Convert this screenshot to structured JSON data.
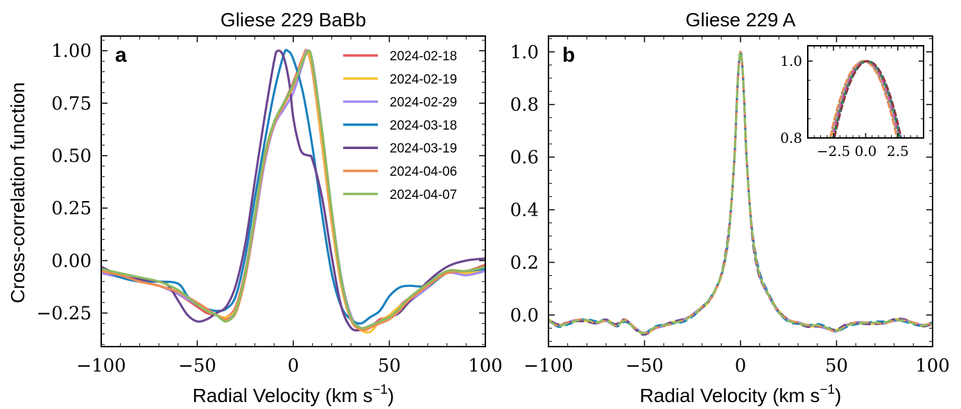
{
  "chart_data": [
    {
      "type": "line",
      "panel_label": "a",
      "title": "Gliese 229 BaBb",
      "xlabel": "Radial Velocity (km s",
      "xlabel_sup": "−1",
      "xlabel_close": ")",
      "ylabel": "Cross-correlation function",
      "xlim": [
        -100,
        100
      ],
      "ylim": [
        -0.41,
        1.07
      ],
      "xticks": [
        -100,
        -50,
        0,
        50,
        100
      ],
      "xtick_labels": [
        "−100",
        "−50",
        "0",
        "50",
        "100"
      ],
      "yticks": [
        -0.25,
        0.0,
        0.25,
        0.5,
        0.75,
        1.0
      ],
      "ytick_labels": [
        "−0.25",
        "0.00",
        "0.25",
        "0.50",
        "0.75",
        "1.00"
      ],
      "legend_position": "top-right",
      "series": [
        {
          "name": "2024-02-18",
          "color": "#e8575e",
          "x": [
            -100,
            -90,
            -80,
            -70,
            -60,
            -50,
            -45,
            -40,
            -35,
            -30,
            -25,
            -20,
            -15,
            -10,
            -5,
            0,
            5,
            7,
            10,
            15,
            20,
            25,
            30,
            35,
            40,
            45,
            50,
            55,
            60,
            70,
            80,
            90,
            100
          ],
          "y": [
            -0.04,
            -0.07,
            -0.1,
            -0.12,
            -0.16,
            -0.22,
            -0.25,
            -0.26,
            -0.27,
            -0.22,
            -0.05,
            0.22,
            0.5,
            0.66,
            0.75,
            0.85,
            0.97,
            1.0,
            0.9,
            0.55,
            0.18,
            -0.12,
            -0.28,
            -0.33,
            -0.32,
            -0.28,
            -0.27,
            -0.22,
            -0.18,
            -0.12,
            -0.05,
            -0.05,
            -0.02
          ]
        },
        {
          "name": "2024-02-19",
          "color": "#f8c236",
          "x": [
            -100,
            -90,
            -80,
            -70,
            -60,
            -50,
            -45,
            -40,
            -35,
            -30,
            -25,
            -20,
            -15,
            -10,
            -5,
            0,
            5,
            7,
            10,
            15,
            20,
            25,
            30,
            35,
            40,
            45,
            50,
            55,
            60,
            70,
            80,
            90,
            100
          ],
          "y": [
            -0.05,
            -0.08,
            -0.1,
            -0.12,
            -0.16,
            -0.21,
            -0.24,
            -0.26,
            -0.27,
            -0.23,
            -0.06,
            0.22,
            0.5,
            0.66,
            0.74,
            0.84,
            0.96,
            1.0,
            0.91,
            0.56,
            0.19,
            -0.12,
            -0.28,
            -0.33,
            -0.34,
            -0.29,
            -0.26,
            -0.22,
            -0.19,
            -0.12,
            -0.05,
            -0.06,
            -0.04
          ]
        },
        {
          "name": "2024-02-29",
          "color": "#a38cee",
          "x": [
            -100,
            -90,
            -80,
            -70,
            -60,
            -50,
            -45,
            -40,
            -35,
            -30,
            -25,
            -20,
            -15,
            -10,
            -5,
            0,
            5,
            7,
            10,
            15,
            20,
            25,
            30,
            35,
            40,
            45,
            50,
            55,
            60,
            70,
            80,
            90,
            100
          ],
          "y": [
            -0.06,
            -0.08,
            -0.1,
            -0.12,
            -0.16,
            -0.21,
            -0.24,
            -0.26,
            -0.28,
            -0.24,
            -0.08,
            0.18,
            0.46,
            0.64,
            0.72,
            0.8,
            0.94,
            1.0,
            0.95,
            0.62,
            0.24,
            -0.08,
            -0.26,
            -0.32,
            -0.31,
            -0.29,
            -0.28,
            -0.24,
            -0.2,
            -0.13,
            -0.06,
            -0.07,
            -0.05
          ]
        },
        {
          "name": "2024-03-18",
          "color": "#1b81be",
          "x": [
            -100,
            -90,
            -80,
            -70,
            -60,
            -55,
            -50,
            -45,
            -40,
            -35,
            -30,
            -25,
            -20,
            -15,
            -10,
            -5,
            -3,
            0,
            5,
            10,
            15,
            20,
            25,
            30,
            35,
            40,
            45,
            50,
            55,
            60,
            70,
            80,
            90,
            100
          ],
          "y": [
            -0.04,
            -0.08,
            -0.1,
            -0.1,
            -0.11,
            -0.17,
            -0.21,
            -0.23,
            -0.24,
            -0.23,
            -0.17,
            0.02,
            0.3,
            0.56,
            0.8,
            0.98,
            1.0,
            0.96,
            0.8,
            0.54,
            0.22,
            -0.06,
            -0.22,
            -0.28,
            -0.3,
            -0.27,
            -0.24,
            -0.17,
            -0.13,
            -0.12,
            -0.12,
            -0.06,
            -0.05,
            -0.04
          ]
        },
        {
          "name": "2024-03-19",
          "color": "#6a4590",
          "x": [
            -100,
            -90,
            -80,
            -70,
            -65,
            -60,
            -55,
            -50,
            -45,
            -40,
            -35,
            -30,
            -25,
            -20,
            -15,
            -10,
            -8,
            -5,
            -2,
            0,
            3,
            5,
            8,
            10,
            15,
            20,
            25,
            30,
            35,
            40,
            45,
            50,
            55,
            60,
            70,
            80,
            90,
            100
          ],
          "y": [
            -0.03,
            -0.07,
            -0.09,
            -0.1,
            -0.12,
            -0.19,
            -0.26,
            -0.29,
            -0.28,
            -0.25,
            -0.22,
            -0.12,
            0.08,
            0.38,
            0.68,
            0.95,
            1.0,
            0.97,
            0.84,
            0.68,
            0.55,
            0.51,
            0.5,
            0.48,
            0.3,
            0.02,
            -0.22,
            -0.32,
            -0.33,
            -0.31,
            -0.29,
            -0.27,
            -0.25,
            -0.2,
            -0.1,
            -0.03,
            0.0,
            0.01
          ]
        },
        {
          "name": "2024-04-06",
          "color": "#f08c50",
          "x": [
            -100,
            -90,
            -80,
            -70,
            -60,
            -50,
            -45,
            -40,
            -35,
            -30,
            -25,
            -20,
            -15,
            -10,
            -5,
            0,
            5,
            8,
            10,
            15,
            20,
            25,
            30,
            35,
            40,
            45,
            50,
            55,
            60,
            70,
            80,
            90,
            100
          ],
          "y": [
            -0.05,
            -0.07,
            -0.1,
            -0.12,
            -0.15,
            -0.2,
            -0.23,
            -0.26,
            -0.28,
            -0.25,
            -0.08,
            0.2,
            0.48,
            0.65,
            0.74,
            0.83,
            0.95,
            1.0,
            0.93,
            0.6,
            0.22,
            -0.1,
            -0.28,
            -0.33,
            -0.32,
            -0.3,
            -0.28,
            -0.24,
            -0.19,
            -0.12,
            -0.06,
            -0.05,
            -0.03
          ]
        },
        {
          "name": "2024-04-07",
          "color": "#8cbb62",
          "x": [
            -100,
            -90,
            -80,
            -70,
            -60,
            -50,
            -45,
            -40,
            -35,
            -30,
            -25,
            -20,
            -15,
            -10,
            -5,
            0,
            5,
            8,
            10,
            15,
            20,
            25,
            30,
            35,
            40,
            45,
            50,
            55,
            60,
            70,
            80,
            90,
            100
          ],
          "y": [
            -0.04,
            -0.06,
            -0.08,
            -0.1,
            -0.14,
            -0.21,
            -0.24,
            -0.26,
            -0.29,
            -0.24,
            -0.06,
            0.22,
            0.5,
            0.66,
            0.75,
            0.84,
            0.95,
            1.0,
            0.94,
            0.62,
            0.24,
            -0.09,
            -0.27,
            -0.32,
            -0.31,
            -0.29,
            -0.27,
            -0.23,
            -0.18,
            -0.11,
            -0.05,
            -0.05,
            -0.03
          ]
        }
      ]
    },
    {
      "type": "line",
      "panel_label": "b",
      "title": "Gliese 229 A",
      "xlabel": "Radial Velocity (km s",
      "xlabel_sup": "−1",
      "xlabel_close": ")",
      "xlim": [
        -100,
        100
      ],
      "ylim": [
        -0.12,
        1.06
      ],
      "xticks": [
        -100,
        -50,
        0,
        50,
        100
      ],
      "xtick_labels": [
        "−100",
        "−50",
        "0",
        "50",
        "100"
      ],
      "yticks": [
        0.0,
        0.2,
        0.4,
        0.6,
        0.8,
        1.0
      ],
      "ytick_labels": [
        "0.0",
        "0.2",
        "0.4",
        "0.6",
        "0.8",
        "1.0"
      ],
      "series_style": "dashed",
      "series_colors": [
        "#e8575e",
        "#f8c236",
        "#a38cee",
        "#1b81be",
        "#6a4590",
        "#f08c50",
        "#8cbb62"
      ],
      "profile": {
        "x": [
          -100,
          -95,
          -90,
          -85,
          -80,
          -75,
          -70,
          -65,
          -60,
          -55,
          -50,
          -45,
          -40,
          -35,
          -30,
          -25,
          -20,
          -15,
          -10,
          -7,
          -5,
          -3,
          -2,
          -1,
          0,
          1,
          2,
          3,
          5,
          7,
          10,
          15,
          20,
          25,
          30,
          35,
          40,
          45,
          50,
          55,
          60,
          65,
          70,
          75,
          80,
          85,
          90,
          95,
          100
        ],
        "y": [
          -0.02,
          -0.04,
          -0.03,
          -0.02,
          -0.02,
          -0.03,
          -0.02,
          -0.04,
          -0.02,
          -0.05,
          -0.07,
          -0.05,
          -0.04,
          -0.03,
          -0.02,
          0.0,
          0.03,
          0.07,
          0.15,
          0.26,
          0.4,
          0.62,
          0.8,
          0.94,
          1.0,
          0.94,
          0.8,
          0.62,
          0.4,
          0.26,
          0.15,
          0.07,
          0.01,
          -0.02,
          -0.03,
          -0.04,
          -0.04,
          -0.05,
          -0.06,
          -0.04,
          -0.03,
          -0.03,
          -0.03,
          -0.03,
          -0.02,
          -0.02,
          -0.03,
          -0.04,
          -0.03
        ]
      },
      "inset": {
        "xlim": [
          -4.5,
          4.5
        ],
        "ylim": [
          0.8,
          1.04
        ],
        "xticks": [
          -2.5,
          0.0,
          2.5
        ],
        "xtick_labels": [
          "−2.5",
          "0.0",
          "2.5"
        ],
        "yticks": [
          0.8,
          1.0
        ],
        "ytick_labels": [
          "0.8",
          "1.0"
        ]
      }
    }
  ]
}
